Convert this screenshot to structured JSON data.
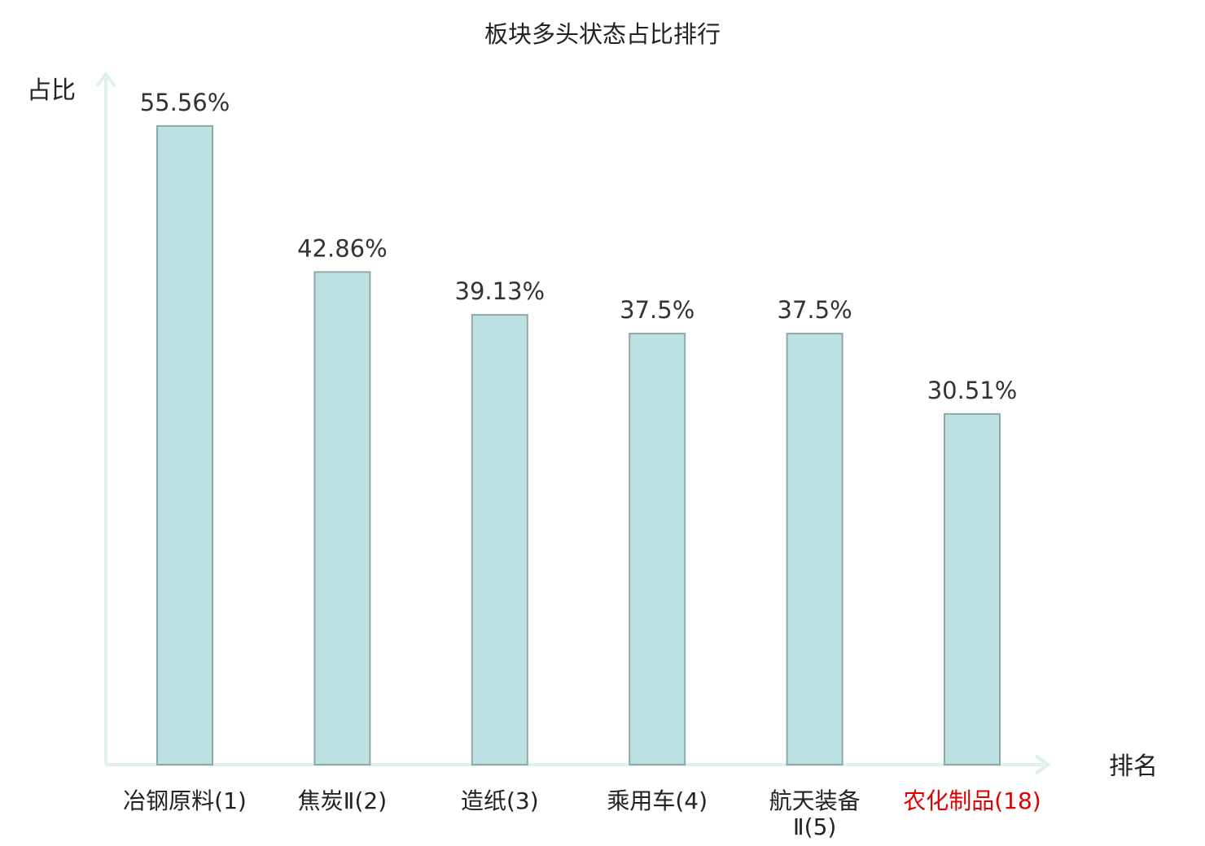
{
  "chart_data": {
    "type": "bar",
    "title": "板块多头状态占比排行",
    "xlabel": "排名",
    "ylabel": "占比",
    "categories": [
      "冶钢原料(1)",
      "焦炭Ⅱ(2)",
      "造纸(3)",
      "乘用车(4)",
      "航天装备Ⅱ(5)",
      "农化制品(18)"
    ],
    "values": [
      55.56,
      42.86,
      39.13,
      37.5,
      37.5,
      30.51
    ],
    "value_labels": [
      "55.56%",
      "42.86%",
      "39.13%",
      "37.5%",
      "37.5%",
      "30.51%"
    ],
    "category_label_lines": [
      [
        "冶钢原料(1)"
      ],
      [
        "焦炭Ⅱ(2)"
      ],
      [
        "造纸(3)"
      ],
      [
        "乘用车(4)"
      ],
      [
        "航天装备",
        "Ⅱ(5)"
      ],
      [
        "农化制品(18)"
      ]
    ],
    "highlight_category_index": 5,
    "grid": false,
    "legend": "none",
    "colors": {
      "bar_fill": "#bde0e3",
      "bar_stroke": "#8ca8ab",
      "axis": "#dff1ee",
      "text": "#222222",
      "value_text": "#333333",
      "highlight_text": "#e00000"
    }
  }
}
